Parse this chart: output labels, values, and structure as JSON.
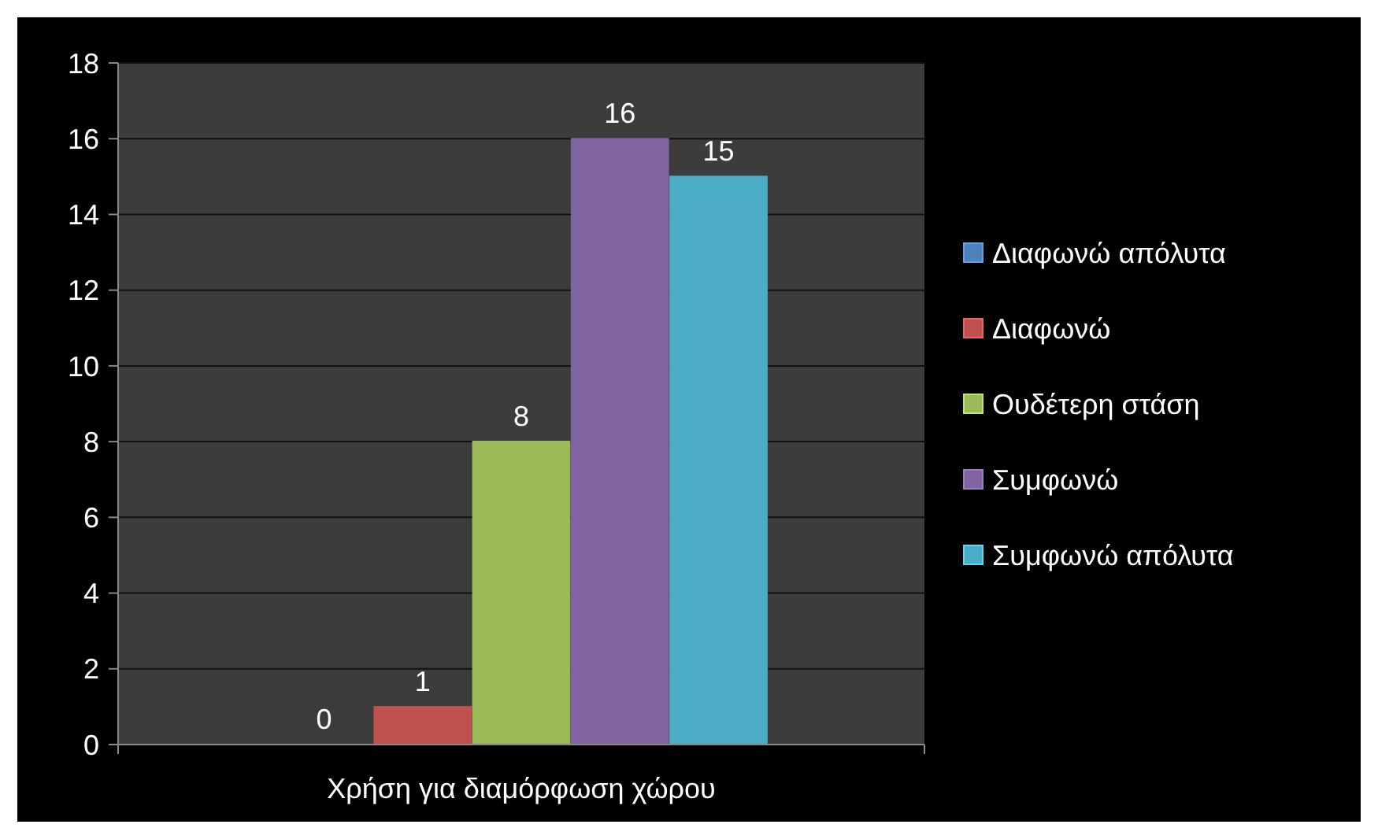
{
  "chart_data": {
    "type": "bar",
    "categories": [
      "Χρήση για διαμόρφωση χώρου"
    ],
    "series": [
      {
        "name": "Διαφωνώ απόλυτα",
        "color": "#4f81bd",
        "values": [
          0
        ]
      },
      {
        "name": "Διαφωνώ",
        "color": "#c0504d",
        "values": [
          1
        ]
      },
      {
        "name": "Ουδέτερη στάση",
        "color": "#9bbb59",
        "values": [
          8
        ]
      },
      {
        "name": "Συμφωνώ",
        "color": "#8064a2",
        "values": [
          16
        ]
      },
      {
        "name": "Συμφωνώ απόλυτα",
        "color": "#4bacc6",
        "values": [
          15
        ]
      }
    ],
    "ylim": [
      0,
      18
    ],
    "yticks": [
      0,
      2,
      4,
      6,
      8,
      10,
      12,
      14,
      16,
      18
    ],
    "grid": "y",
    "legend": "right",
    "data_labels": true
  }
}
